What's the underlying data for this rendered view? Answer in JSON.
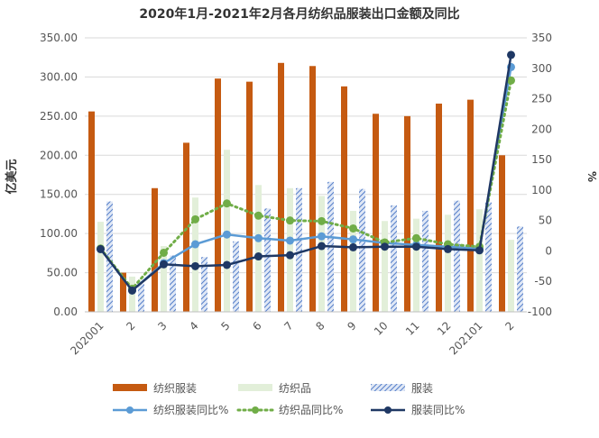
{
  "chart_data": {
    "type": "bar",
    "title": "2020年1月-2021年2月各月纺织品服装出口金额及同比",
    "ylabel": "亿美元",
    "y2label": "%",
    "categories": [
      "202001",
      "2",
      "3",
      "4",
      "5",
      "6",
      "7",
      "8",
      "9",
      "10",
      "11",
      "12",
      "202101",
      "2"
    ],
    "ylim": [
      0,
      350
    ],
    "y_ticks": [
      "0.00",
      "50.00",
      "100.00",
      "150.00",
      "200.00",
      "250.00",
      "300.00",
      "350.00"
    ],
    "y2lim": [
      -100,
      350
    ],
    "y2_ticks": [
      "-100",
      "-50",
      "0",
      "50",
      "100",
      "150",
      "200",
      "250",
      "300",
      "350"
    ],
    "grid": true,
    "legend_position": "bottom",
    "series": [
      {
        "name": "纺织服装",
        "kind": "bar",
        "axis": "left",
        "color": "#c55a11",
        "values": [
          256,
          50,
          158,
          216,
          298,
          294,
          318,
          314,
          288,
          253,
          250,
          266,
          271,
          200
        ]
      },
      {
        "name": "纺织品",
        "kind": "bar",
        "axis": "left",
        "color": "#e2efd9",
        "values": [
          115,
          45,
          84,
          146,
          207,
          162,
          158,
          148,
          129,
          116,
          119,
          124,
          131,
          92
        ]
      },
      {
        "name": "服装",
        "kind": "bar",
        "axis": "left",
        "color": "#8faadc",
        "pattern": "hatch",
        "values": [
          141,
          36,
          72,
          70,
          90,
          132,
          158,
          166,
          157,
          136,
          129,
          142,
          140,
          109
        ]
      },
      {
        "name": "纺织服装同比%",
        "kind": "line",
        "axis": "right",
        "color": "#5b9bd5",
        "values": [
          3,
          -65,
          -20,
          11,
          27,
          21,
          17,
          24,
          19,
          13,
          10,
          7,
          4,
          302
        ]
      },
      {
        "name": "纺织品同比%",
        "kind": "line",
        "axis": "right",
        "color": "#70ad47",
        "dash": "dotted",
        "values": [
          4,
          -62,
          -3,
          52,
          78,
          58,
          50,
          49,
          37,
          14,
          21,
          11,
          7,
          280
        ]
      },
      {
        "name": "服装同比%",
        "kind": "line",
        "axis": "right",
        "color": "#1f3864",
        "values": [
          3,
          -65,
          -22,
          -25,
          -23,
          -9,
          -7,
          8,
          6,
          7,
          7,
          3,
          1,
          322
        ]
      }
    ]
  }
}
